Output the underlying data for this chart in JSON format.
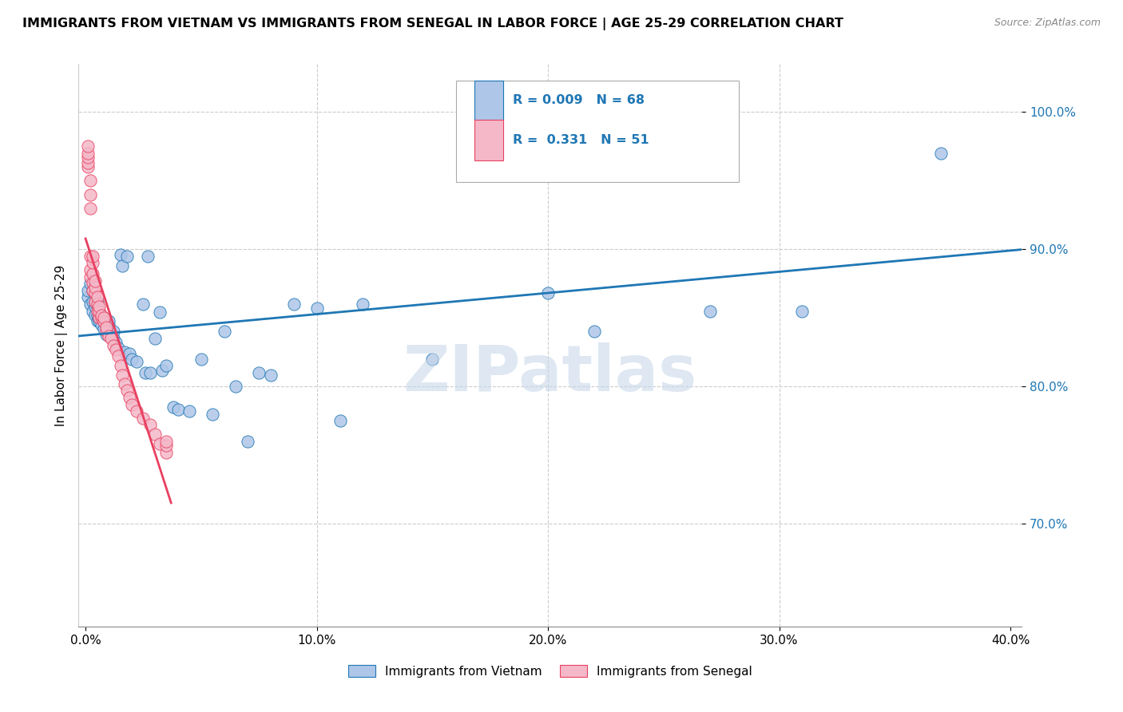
{
  "title": "IMMIGRANTS FROM VIETNAM VS IMMIGRANTS FROM SENEGAL IN LABOR FORCE | AGE 25-29 CORRELATION CHART",
  "source": "Source: ZipAtlas.com",
  "scatter_vietnam_color": "#aec6e8",
  "scatter_senegal_color": "#f4b8c8",
  "trend_vietnam_color": "#1f77b4",
  "trend_senegal_color": "#e84060",
  "diagonal_color": "#bbbbbb",
  "watermark": "ZIPatlas",
  "watermark_color": "#c8d8ea",
  "ylabel": "In Labor Force | Age 25-29",
  "bottom_legend_vietnam": "Immigrants from Vietnam",
  "bottom_legend_senegal": "Immigrants from Senegal",
  "xlim": [
    -0.003,
    0.405
  ],
  "ylim": [
    0.625,
    1.035
  ],
  "yticks": [
    1.0,
    0.9,
    0.8,
    0.7
  ],
  "xticks": [
    0.0,
    0.1,
    0.2,
    0.3,
    0.4
  ],
  "vietnam_x": [
    0.001,
    0.001,
    0.002,
    0.002,
    0.003,
    0.003,
    0.003,
    0.004,
    0.004,
    0.004,
    0.005,
    0.005,
    0.005,
    0.005,
    0.006,
    0.006,
    0.006,
    0.007,
    0.007,
    0.008,
    0.008,
    0.009,
    0.009,
    0.01,
    0.01,
    0.01,
    0.011,
    0.012,
    0.012,
    0.013,
    0.014,
    0.015,
    0.016,
    0.017,
    0.018,
    0.019,
    0.02,
    0.022,
    0.025,
    0.026,
    0.027,
    0.028,
    0.03,
    0.032,
    0.033,
    0.035,
    0.038,
    0.04,
    0.045,
    0.05,
    0.055,
    0.06,
    0.065,
    0.07,
    0.075,
    0.08,
    0.09,
    0.1,
    0.11,
    0.12,
    0.15,
    0.17,
    0.2,
    0.22,
    0.24,
    0.27,
    0.31,
    0.37
  ],
  "vietnam_y": [
    0.865,
    0.87,
    0.86,
    0.875,
    0.855,
    0.862,
    0.87,
    0.852,
    0.858,
    0.862,
    0.848,
    0.852,
    0.858,
    0.862,
    0.848,
    0.85,
    0.855,
    0.845,
    0.85,
    0.842,
    0.85,
    0.838,
    0.845,
    0.84,
    0.845,
    0.848,
    0.838,
    0.835,
    0.84,
    0.832,
    0.828,
    0.896,
    0.888,
    0.825,
    0.895,
    0.824,
    0.82,
    0.818,
    0.86,
    0.81,
    0.895,
    0.81,
    0.835,
    0.854,
    0.812,
    0.815,
    0.785,
    0.783,
    0.782,
    0.82,
    0.78,
    0.84,
    0.8,
    0.76,
    0.81,
    0.808,
    0.86,
    0.857,
    0.775,
    0.86,
    0.82,
    0.956,
    0.868,
    0.84,
    0.955,
    0.855,
    0.855,
    0.97
  ],
  "senegal_x": [
    0.001,
    0.001,
    0.001,
    0.001,
    0.001,
    0.002,
    0.002,
    0.002,
    0.002,
    0.002,
    0.002,
    0.003,
    0.003,
    0.003,
    0.003,
    0.003,
    0.004,
    0.004,
    0.004,
    0.004,
    0.005,
    0.005,
    0.005,
    0.006,
    0.006,
    0.006,
    0.007,
    0.007,
    0.008,
    0.008,
    0.009,
    0.009,
    0.01,
    0.011,
    0.012,
    0.013,
    0.014,
    0.015,
    0.016,
    0.017,
    0.018,
    0.019,
    0.02,
    0.022,
    0.025,
    0.028,
    0.03,
    0.032,
    0.035,
    0.035,
    0.035
  ],
  "senegal_y": [
    0.96,
    0.963,
    0.967,
    0.97,
    0.975,
    0.93,
    0.94,
    0.95,
    0.88,
    0.885,
    0.895,
    0.87,
    0.876,
    0.882,
    0.89,
    0.895,
    0.862,
    0.868,
    0.872,
    0.877,
    0.855,
    0.86,
    0.865,
    0.85,
    0.855,
    0.858,
    0.85,
    0.852,
    0.847,
    0.85,
    0.84,
    0.843,
    0.837,
    0.835,
    0.83,
    0.827,
    0.822,
    0.815,
    0.808,
    0.802,
    0.797,
    0.792,
    0.787,
    0.782,
    0.777,
    0.772,
    0.765,
    0.758,
    0.752,
    0.757,
    0.76
  ]
}
